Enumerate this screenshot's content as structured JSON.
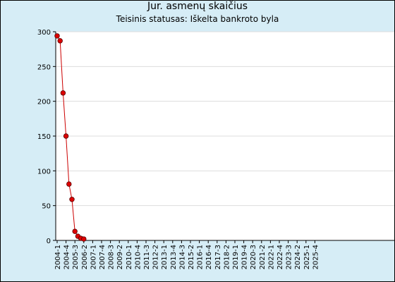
{
  "chart_data": {
    "type": "line",
    "title": "Jur. asmenų skaičius",
    "subtitle": "Teisinis statusas: Iškelta bankroto byla",
    "xlabel": "",
    "ylabel": "",
    "ylim": [
      0,
      300
    ],
    "yticks": [
      0,
      50,
      100,
      150,
      200,
      250,
      300
    ],
    "xtick_labels": [
      "2004-1",
      "2004-4",
      "2005-3",
      "2006-2",
      "2007-1",
      "2007-4",
      "2008-3",
      "2009-2",
      "2010-1",
      "2010-4",
      "2011-3",
      "2012-2",
      "2013-1",
      "2013-4",
      "2014-3",
      "2015-2",
      "2016-1",
      "2016-4",
      "2017-3",
      "2018-2",
      "2019-1",
      "2019-4",
      "2020-3",
      "2021-2",
      "2022-1",
      "2022-4",
      "2023-3",
      "2024-2",
      "2025-1",
      "2025-4"
    ],
    "grid": true,
    "colors": {
      "line": "#cc0000",
      "marker": "#dd0000",
      "plot_bg": "#ffffff",
      "grid": "#dddddd"
    },
    "series": [
      {
        "x": [
          "2004-1",
          "2004-2",
          "2004-3",
          "2004-4",
          "2005-1",
          "2005-2",
          "2005-3",
          "2005-4",
          "2006-1",
          "2006-2"
        ],
        "values": [
          294,
          287,
          212,
          150,
          81,
          59,
          13,
          6,
          3,
          2
        ]
      }
    ]
  }
}
